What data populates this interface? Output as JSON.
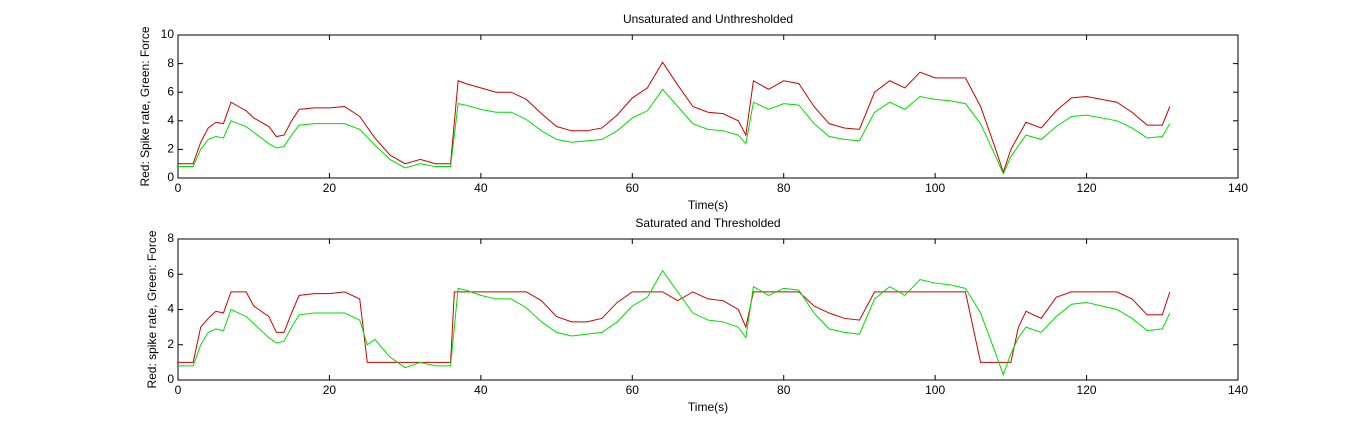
{
  "chart_data": [
    {
      "type": "line",
      "title": "Unsaturated and Unthresholded",
      "x_label": "Time(s)",
      "y_label": "Red: Spike rate, Green: Force",
      "xlim": [
        0,
        140
      ],
      "xticks": [
        0,
        20,
        40,
        60,
        80,
        100,
        120,
        140
      ],
      "ylim": [
        0,
        10
      ],
      "yticks": [
        0,
        2,
        4,
        6,
        8,
        10
      ],
      "x": [
        0,
        2,
        3,
        4,
        5,
        6,
        7,
        8,
        9,
        10,
        12,
        13,
        14,
        15,
        16,
        18,
        20,
        22,
        24,
        26,
        28,
        30,
        32,
        34,
        36,
        37,
        38,
        40,
        42,
        44,
        46,
        48,
        50,
        52,
        54,
        56,
        58,
        60,
        62,
        64,
        66,
        68,
        70,
        72,
        74,
        75,
        76,
        78,
        80,
        82,
        84,
        86,
        88,
        90,
        92,
        94,
        96,
        98,
        100,
        102,
        104,
        106,
        108,
        109,
        110,
        112,
        114,
        116,
        118,
        120,
        122,
        124,
        126,
        128,
        130,
        131
      ],
      "series": [
        {
          "color": "#cc0000",
          "values": [
            1.0,
            1.0,
            2.5,
            3.5,
            3.9,
            3.8,
            5.3,
            5.0,
            4.7,
            4.2,
            3.6,
            2.9,
            3.0,
            4.0,
            4.8,
            4.9,
            4.9,
            5.0,
            4.3,
            2.8,
            1.6,
            1.0,
            1.3,
            1.0,
            1.0,
            6.8,
            6.6,
            6.3,
            6.0,
            6.0,
            5.5,
            4.5,
            3.6,
            3.3,
            3.3,
            3.5,
            4.4,
            5.6,
            6.3,
            8.1,
            6.5,
            5.0,
            4.6,
            4.5,
            4.0,
            3.0,
            6.8,
            6.2,
            6.8,
            6.6,
            5.0,
            3.8,
            3.5,
            3.4,
            6.0,
            6.8,
            6.3,
            7.4,
            7.0,
            7.0,
            7.0,
            5.0,
            2.0,
            0.4,
            2.0,
            3.9,
            3.5,
            4.7,
            5.6,
            5.7,
            5.5,
            5.3,
            4.6,
            3.7,
            3.7,
            5.0
          ]
        },
        {
          "color": "#00dd00",
          "values": [
            0.8,
            0.8,
            2.0,
            2.7,
            2.9,
            2.8,
            4.0,
            3.8,
            3.6,
            3.2,
            2.4,
            2.1,
            2.2,
            3.0,
            3.7,
            3.8,
            3.8,
            3.8,
            3.4,
            2.3,
            1.3,
            0.7,
            1.0,
            0.8,
            0.8,
            5.2,
            5.1,
            4.8,
            4.6,
            4.6,
            4.1,
            3.3,
            2.7,
            2.5,
            2.6,
            2.7,
            3.3,
            4.2,
            4.7,
            6.2,
            5.0,
            3.8,
            3.4,
            3.3,
            3.0,
            2.4,
            5.3,
            4.8,
            5.2,
            5.1,
            3.8,
            2.9,
            2.7,
            2.6,
            4.6,
            5.3,
            4.8,
            5.7,
            5.5,
            5.4,
            5.2,
            3.8,
            1.5,
            0.3,
            1.5,
            3.0,
            2.7,
            3.6,
            4.3,
            4.4,
            4.2,
            4.0,
            3.5,
            2.8,
            2.9,
            3.8
          ]
        }
      ]
    },
    {
      "type": "line",
      "title": "Saturated and Thresholded",
      "x_label": "Time(s)",
      "y_label": "Red: spike rate, Green: Force",
      "xlim": [
        0,
        140
      ],
      "xticks": [
        0,
        20,
        40,
        60,
        80,
        100,
        120,
        140
      ],
      "ylim": [
        0,
        8
      ],
      "yticks": [
        0,
        2,
        4,
        6,
        8
      ],
      "x": [
        0,
        2,
        3,
        4,
        5,
        6,
        7,
        8,
        9,
        10,
        12,
        13,
        14,
        15,
        16,
        18,
        20,
        22,
        24,
        25,
        26,
        28,
        30,
        32,
        34,
        36,
        36.5,
        37,
        38,
        40,
        42,
        44,
        46,
        48,
        50,
        52,
        54,
        56,
        58,
        60,
        62,
        64,
        66,
        68,
        70,
        72,
        74,
        75,
        76,
        78,
        80,
        82,
        84,
        86,
        88,
        90,
        92,
        94,
        96,
        98,
        100,
        102,
        104,
        106,
        108,
        109,
        110,
        111,
        112,
        114,
        116,
        118,
        120,
        122,
        124,
        126,
        128,
        130,
        131
      ],
      "series": [
        {
          "color": "#cc0000",
          "values": [
            1,
            1,
            3.0,
            3.5,
            3.9,
            3.8,
            5,
            5,
            5,
            4.2,
            3.6,
            2.7,
            2.7,
            3.8,
            4.8,
            4.9,
            4.9,
            5,
            4.6,
            1,
            1,
            1,
            1,
            1,
            1,
            1,
            5,
            5,
            5,
            5,
            5,
            5,
            5,
            4.5,
            3.6,
            3.3,
            3.3,
            3.5,
            4.4,
            5,
            5,
            5,
            4.5,
            5,
            4.6,
            4.5,
            4.0,
            3.0,
            5,
            5,
            5,
            5,
            4.2,
            3.8,
            3.5,
            3.4,
            5,
            5,
            5,
            5,
            5,
            5,
            5,
            1,
            1,
            1,
            1,
            3.0,
            3.9,
            3.5,
            4.7,
            5,
            5,
            5,
            5,
            4.6,
            3.7,
            3.7,
            5.0
          ]
        },
        {
          "color": "#00dd00",
          "values": [
            0.8,
            0.8,
            2.0,
            2.7,
            2.9,
            2.8,
            4.0,
            3.8,
            3.6,
            3.2,
            2.4,
            2.1,
            2.2,
            3.0,
            3.7,
            3.8,
            3.8,
            3.8,
            3.4,
            2.0,
            2.3,
            1.3,
            0.7,
            1.0,
            0.8,
            0.8,
            3.0,
            5.2,
            5.1,
            4.8,
            4.6,
            4.6,
            4.1,
            3.3,
            2.7,
            2.5,
            2.6,
            2.7,
            3.3,
            4.2,
            4.7,
            6.2,
            5.0,
            3.8,
            3.4,
            3.3,
            3.0,
            2.4,
            5.3,
            4.8,
            5.2,
            5.1,
            3.8,
            2.9,
            2.7,
            2.6,
            4.6,
            5.3,
            4.8,
            5.7,
            5.5,
            5.4,
            5.2,
            3.8,
            1.5,
            0.3,
            1.5,
            2.4,
            3.0,
            2.7,
            3.6,
            4.3,
            4.4,
            4.2,
            4.0,
            3.5,
            2.8,
            2.9,
            3.8
          ]
        }
      ]
    }
  ]
}
